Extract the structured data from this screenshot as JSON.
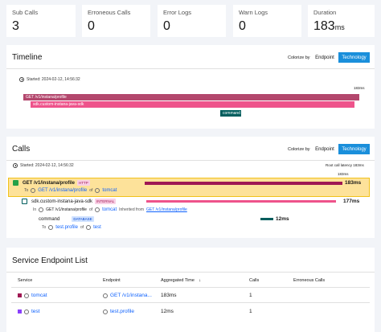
{
  "stats": [
    {
      "label": "Sub Calls",
      "value": "3",
      "unit": ""
    },
    {
      "label": "Erroneous Calls",
      "value": "0",
      "unit": ""
    },
    {
      "label": "Error Logs",
      "value": "0",
      "unit": ""
    },
    {
      "label": "Warn Logs",
      "value": "0",
      "unit": ""
    },
    {
      "label": "Duration",
      "value": "183",
      "unit": "ms"
    }
  ],
  "timeline": {
    "title": "Timeline",
    "colorize_label": "Colorize by",
    "endpoint_btn": "Endpoint",
    "technology_btn": "Technology",
    "started": "Started: 2024-02-12, 14:56:32",
    "scale_end": "183ms",
    "bars": [
      {
        "label": "GET /v1/instana/profile",
        "color": "#b3476d"
      },
      {
        "label": "sdk.custom-instana-java-sdk",
        "color": "#ee538b"
      },
      {
        "label": "command",
        "color": "#005d5d"
      }
    ]
  },
  "calls": {
    "title": "Calls",
    "colorize_label": "Colorize by",
    "endpoint_btn": "Endpoint",
    "technology_btn": "Technology",
    "started": "Started: 2024-02-12, 14:56:32",
    "root_latency": "Root call latency 183ms",
    "scale_end": "183ms",
    "rows": [
      {
        "name": "GET /v1/instana/profile",
        "tag": "HTTP",
        "to_prefix": "To",
        "endpoint": "GET /v1/instana/profile",
        "of": "of",
        "service": "tomcat",
        "duration": "183ms"
      },
      {
        "name": "sdk.custom-instana-java-sdk",
        "tag": "INTERNAL",
        "to_prefix": "In",
        "endpoint": "GET /v1/instana/profile",
        "of": "of",
        "service": "tomcat",
        "inherited": "Inherited from",
        "inherited_link": "GET /v1/instana/profile",
        "duration": "177ms"
      },
      {
        "name": "command",
        "tag": "DATABASE",
        "to_prefix": "To",
        "endpoint": "test.profile",
        "of": "of",
        "service": "test",
        "duration": "12ms"
      }
    ]
  },
  "endpoints": {
    "title": "Service Endpoint List",
    "headers": {
      "service": "Service",
      "endpoint": "Endpoint",
      "aggregated": "Aggregated Time",
      "calls": "Calls",
      "erroneous": "Erroneous Calls"
    },
    "rows": [
      {
        "service": "tomcat",
        "endpoint": "GET /v1/instana...",
        "aggregated": "183ms",
        "calls": "1",
        "erroneous": "",
        "color": "#9f1853"
      },
      {
        "service": "test",
        "endpoint": "test.profile",
        "aggregated": "12ms",
        "calls": "1",
        "erroneous": "",
        "color": "#8a3ffc"
      }
    ]
  }
}
